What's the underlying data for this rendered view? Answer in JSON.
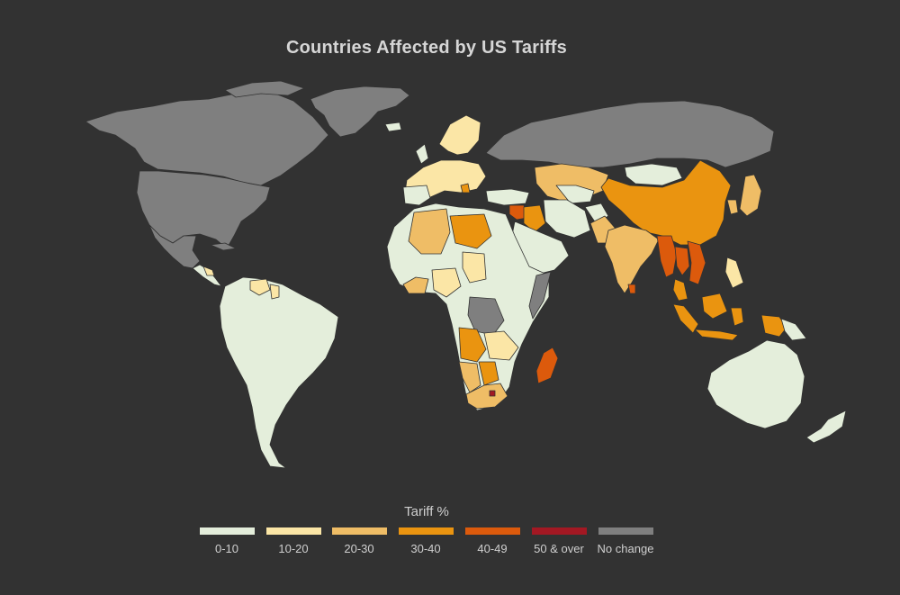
{
  "title": "Countries Affected by US Tariffs",
  "colors": {
    "background": "#323232",
    "border": "#323232"
  },
  "legend": {
    "title": "Tariff %",
    "items": [
      {
        "label": "0-10",
        "color": "#e4eedb"
      },
      {
        "label": "10-20",
        "color": "#fbe6a6"
      },
      {
        "label": "20-30",
        "color": "#efbd66"
      },
      {
        "label": "30-40",
        "color": "#ea9410"
      },
      {
        "label": "40-49",
        "color": "#dc5a0c"
      },
      {
        "label": "50 & over",
        "color": "#a31823"
      },
      {
        "label": "No change",
        "color": "#7f7f7f"
      }
    ]
  }
}
